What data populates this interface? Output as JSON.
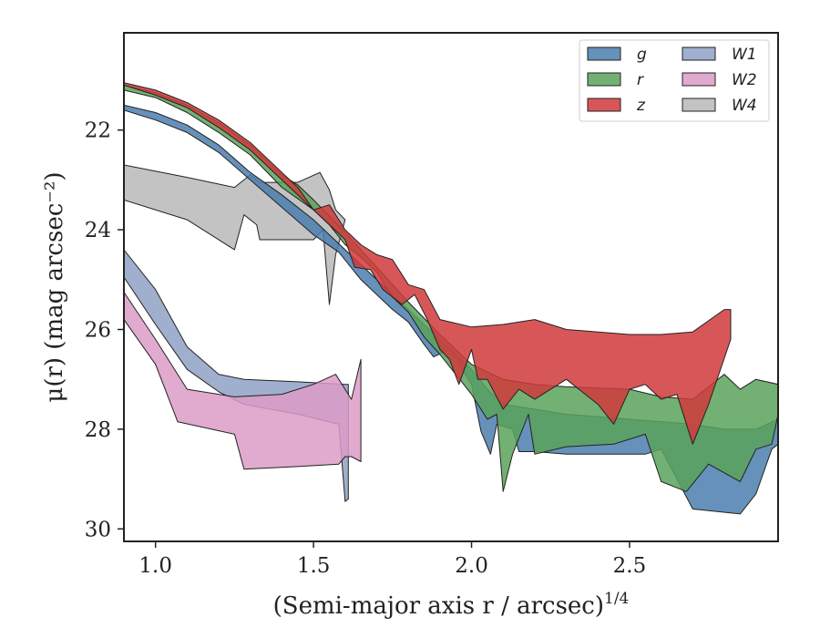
{
  "chart_data": {
    "type": "area",
    "title": "",
    "xlabel": "(Semi-major axis r / arcsec)",
    "xlabel_sup": "1/4",
    "ylabel": "μ(r) (mag arcsec⁻²)",
    "xlim": [
      0.9,
      2.97
    ],
    "ylim": [
      30.25,
      20.05
    ],
    "y_inverted": true,
    "xticks": [
      1.0,
      1.5,
      2.0,
      2.5
    ],
    "xtick_labels": [
      "1.0",
      "1.5",
      "2.0",
      "2.5"
    ],
    "yticks": [
      22,
      24,
      26,
      28,
      30
    ],
    "ytick_labels": [
      "22",
      "24",
      "26",
      "28",
      "30"
    ],
    "legend": {
      "location": "top-right",
      "columns": 2
    },
    "series": [
      {
        "name": "W1",
        "color": "#8fa1c4",
        "upper": [
          [
            0.9,
            24.4
          ],
          [
            1.0,
            25.2
          ],
          [
            1.1,
            26.35
          ],
          [
            1.2,
            26.9
          ],
          [
            1.28,
            27.0
          ],
          [
            1.45,
            27.05
          ],
          [
            1.6,
            27.1
          ],
          [
            1.61,
            27.1
          ]
        ],
        "lower": [
          [
            0.9,
            24.95
          ],
          [
            1.0,
            25.9
          ],
          [
            1.1,
            26.8
          ],
          [
            1.2,
            27.25
          ],
          [
            1.28,
            27.5
          ],
          [
            1.45,
            27.7
          ],
          [
            1.58,
            27.9
          ],
          [
            1.6,
            29.45
          ],
          [
            1.61,
            29.4
          ]
        ]
      },
      {
        "name": "W2",
        "color": "#dc9bc7",
        "upper": [
          [
            0.9,
            25.25
          ],
          [
            1.0,
            26.2
          ],
          [
            1.1,
            27.2
          ],
          [
            1.25,
            27.35
          ],
          [
            1.4,
            27.3
          ],
          [
            1.5,
            27.1
          ],
          [
            1.57,
            26.9
          ],
          [
            1.62,
            27.4
          ],
          [
            1.65,
            26.6
          ]
        ],
        "lower": [
          [
            0.9,
            25.8
          ],
          [
            1.0,
            26.7
          ],
          [
            1.07,
            27.85
          ],
          [
            1.25,
            28.1
          ],
          [
            1.28,
            28.8
          ],
          [
            1.45,
            28.75
          ],
          [
            1.58,
            28.7
          ],
          [
            1.6,
            28.55
          ],
          [
            1.62,
            28.55
          ],
          [
            1.65,
            28.65
          ]
        ]
      },
      {
        "name": "W4",
        "color": "#b9b9b9",
        "upper": [
          [
            0.9,
            22.7
          ],
          [
            1.1,
            22.95
          ],
          [
            1.25,
            23.15
          ],
          [
            1.3,
            22.9
          ],
          [
            1.33,
            23.05
          ],
          [
            1.45,
            23.05
          ],
          [
            1.52,
            22.85
          ],
          [
            1.55,
            23.2
          ],
          [
            1.57,
            23.6
          ]
        ],
        "lower": [
          [
            0.9,
            23.4
          ],
          [
            1.1,
            23.8
          ],
          [
            1.25,
            24.4
          ],
          [
            1.28,
            23.7
          ],
          [
            1.32,
            23.9
          ],
          [
            1.33,
            24.2
          ],
          [
            1.5,
            24.2
          ],
          [
            1.53,
            24.0
          ],
          [
            1.55,
            25.5
          ],
          [
            1.57,
            24.5
          ],
          [
            1.6,
            23.8
          ]
        ]
      },
      {
        "name": "g",
        "color": "#4a7eae",
        "upper": [
          [
            0.9,
            21.5
          ],
          [
            1.0,
            21.65
          ],
          [
            1.1,
            21.9
          ],
          [
            1.2,
            22.3
          ],
          [
            1.3,
            22.85
          ],
          [
            1.4,
            23.3
          ],
          [
            1.5,
            23.8
          ],
          [
            1.6,
            24.4
          ],
          [
            1.7,
            25.0
          ],
          [
            1.8,
            25.6
          ],
          [
            1.9,
            26.2
          ],
          [
            2.0,
            26.8
          ],
          [
            2.05,
            27.2
          ],
          [
            2.1,
            27.5
          ],
          [
            2.2,
            27.6
          ],
          [
            2.3,
            27.7
          ],
          [
            2.5,
            27.8
          ],
          [
            2.7,
            27.9
          ],
          [
            2.8,
            28.0
          ],
          [
            2.9,
            28.0
          ],
          [
            2.97,
            27.8
          ]
        ],
        "lower": [
          [
            0.9,
            21.6
          ],
          [
            1.0,
            21.8
          ],
          [
            1.1,
            22.05
          ],
          [
            1.2,
            22.45
          ],
          [
            1.3,
            23.0
          ],
          [
            1.4,
            23.55
          ],
          [
            1.5,
            24.1
          ],
          [
            1.58,
            24.45
          ],
          [
            1.65,
            25.0
          ],
          [
            1.7,
            25.3
          ],
          [
            1.75,
            25.6
          ],
          [
            1.8,
            25.85
          ],
          [
            1.85,
            26.3
          ],
          [
            1.88,
            26.55
          ],
          [
            1.93,
            26.4
          ],
          [
            1.96,
            26.7
          ],
          [
            2.0,
            27.1
          ],
          [
            2.03,
            28.05
          ],
          [
            2.06,
            28.5
          ],
          [
            2.08,
            27.9
          ],
          [
            2.13,
            28.0
          ],
          [
            2.15,
            28.45
          ],
          [
            2.2,
            28.45
          ],
          [
            2.3,
            28.5
          ],
          [
            2.5,
            28.5
          ],
          [
            2.55,
            28.5
          ],
          [
            2.6,
            28.4
          ],
          [
            2.7,
            29.6
          ],
          [
            2.85,
            29.7
          ],
          [
            2.9,
            29.3
          ],
          [
            2.95,
            28.4
          ],
          [
            2.97,
            28.3
          ]
        ]
      },
      {
        "name": "r",
        "color": "#5ba25a",
        "upper": [
          [
            0.9,
            21.1
          ],
          [
            1.0,
            21.25
          ],
          [
            1.1,
            21.5
          ],
          [
            1.2,
            21.85
          ],
          [
            1.3,
            22.3
          ],
          [
            1.4,
            22.9
          ],
          [
            1.45,
            23.1
          ],
          [
            1.5,
            23.4
          ],
          [
            1.6,
            24.05
          ],
          [
            1.7,
            24.75
          ],
          [
            1.8,
            25.45
          ],
          [
            1.9,
            26.1
          ],
          [
            2.0,
            26.7
          ],
          [
            2.1,
            27.0
          ],
          [
            2.2,
            27.1
          ],
          [
            2.3,
            27.15
          ],
          [
            2.5,
            27.2
          ],
          [
            2.6,
            27.35
          ],
          [
            2.7,
            27.4
          ],
          [
            2.8,
            26.9
          ],
          [
            2.85,
            27.2
          ],
          [
            2.9,
            27.0
          ],
          [
            2.97,
            27.1
          ]
        ],
        "lower": [
          [
            0.9,
            21.2
          ],
          [
            1.0,
            21.35
          ],
          [
            1.1,
            21.65
          ],
          [
            1.2,
            22.05
          ],
          [
            1.3,
            22.5
          ],
          [
            1.4,
            23.15
          ],
          [
            1.5,
            23.6
          ],
          [
            1.55,
            23.9
          ],
          [
            1.6,
            24.3
          ],
          [
            1.65,
            24.55
          ],
          [
            1.7,
            24.85
          ],
          [
            1.75,
            25.35
          ],
          [
            1.8,
            25.65
          ],
          [
            1.85,
            26.15
          ],
          [
            1.9,
            26.5
          ],
          [
            1.95,
            26.9
          ],
          [
            2.0,
            27.3
          ],
          [
            2.05,
            27.8
          ],
          [
            2.08,
            27.7
          ],
          [
            2.1,
            29.25
          ],
          [
            2.13,
            28.5
          ],
          [
            2.18,
            27.7
          ],
          [
            2.2,
            28.5
          ],
          [
            2.3,
            28.35
          ],
          [
            2.45,
            28.3
          ],
          [
            2.55,
            28.1
          ],
          [
            2.6,
            29.05
          ],
          [
            2.68,
            29.25
          ],
          [
            2.75,
            28.7
          ],
          [
            2.85,
            29.05
          ],
          [
            2.9,
            28.4
          ],
          [
            2.95,
            28.3
          ],
          [
            2.97,
            27.7
          ]
        ]
      },
      {
        "name": "z",
        "color": "#d03a3c",
        "upper": [
          [
            0.9,
            21.05
          ],
          [
            1.0,
            21.2
          ],
          [
            1.1,
            21.45
          ],
          [
            1.2,
            21.8
          ],
          [
            1.3,
            22.25
          ],
          [
            1.4,
            22.85
          ],
          [
            1.45,
            23.15
          ],
          [
            1.5,
            23.6
          ],
          [
            1.55,
            23.5
          ],
          [
            1.6,
            24.0
          ],
          [
            1.65,
            24.3
          ],
          [
            1.7,
            24.5
          ],
          [
            1.75,
            24.6
          ],
          [
            1.8,
            25.1
          ],
          [
            1.85,
            25.2
          ],
          [
            1.9,
            25.8
          ],
          [
            2.0,
            25.95
          ],
          [
            2.1,
            25.9
          ],
          [
            2.2,
            25.8
          ],
          [
            2.3,
            26.0
          ],
          [
            2.4,
            26.05
          ],
          [
            2.5,
            26.1
          ],
          [
            2.6,
            26.1
          ],
          [
            2.7,
            26.05
          ],
          [
            2.8,
            25.6
          ],
          [
            2.82,
            25.6
          ]
        ],
        "lower": [
          [
            0.9,
            21.1
          ],
          [
            1.0,
            21.3
          ],
          [
            1.1,
            21.55
          ],
          [
            1.2,
            21.95
          ],
          [
            1.3,
            22.4
          ],
          [
            1.4,
            23.0
          ],
          [
            1.45,
            23.3
          ],
          [
            1.5,
            23.6
          ],
          [
            1.55,
            23.9
          ],
          [
            1.6,
            24.2
          ],
          [
            1.63,
            24.75
          ],
          [
            1.68,
            24.8
          ],
          [
            1.72,
            25.2
          ],
          [
            1.78,
            25.5
          ],
          [
            1.82,
            25.3
          ],
          [
            1.86,
            25.8
          ],
          [
            1.9,
            26.4
          ],
          [
            1.93,
            26.6
          ],
          [
            1.96,
            27.1
          ],
          [
            2.0,
            26.4
          ],
          [
            2.02,
            27.0
          ],
          [
            2.05,
            27.0
          ],
          [
            2.1,
            27.6
          ],
          [
            2.15,
            27.2
          ],
          [
            2.2,
            27.4
          ],
          [
            2.3,
            27.0
          ],
          [
            2.4,
            27.5
          ],
          [
            2.45,
            27.9
          ],
          [
            2.5,
            27.2
          ],
          [
            2.55,
            27.1
          ],
          [
            2.6,
            27.4
          ],
          [
            2.65,
            27.3
          ],
          [
            2.7,
            28.3
          ],
          [
            2.75,
            27.5
          ],
          [
            2.82,
            26.2
          ]
        ]
      }
    ]
  }
}
